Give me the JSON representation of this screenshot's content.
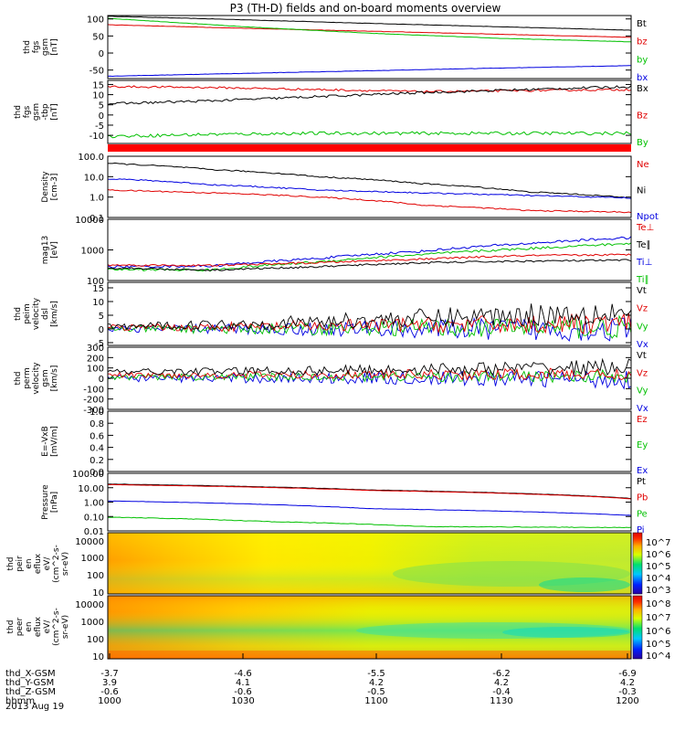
{
  "chart_data": {
    "type": "line",
    "title": "P3 (TH-D) fields and on-board moments overview",
    "date": "2013 Aug 19",
    "time_axis": {
      "tick_times": [
        "1000",
        "1030",
        "1100",
        "1130",
        "1200"
      ],
      "rows": [
        {
          "label": "thd_X-GSM",
          "values": [
            "-3.7",
            "-4.6",
            "-5.5",
            "-6.2",
            "-6.9"
          ]
        },
        {
          "label": "thd_Y-GSM",
          "values": [
            "3.9",
            "4.1",
            "4.2",
            "4.2",
            "4.2"
          ]
        },
        {
          "label": "thd_Z-GSM",
          "values": [
            "-0.6",
            "-0.6",
            "-0.5",
            "-0.4",
            "-0.3"
          ]
        },
        {
          "label": "hhmm",
          "values": [
            "1000",
            "1030",
            "1100",
            "1130",
            "1200"
          ]
        }
      ]
    },
    "panels": [
      {
        "id": "fgs",
        "ylabel": [
          "thd",
          "fgs",
          "gsm",
          "[nT]"
        ],
        "ylim": [
          -75,
          110
        ],
        "log": false,
        "ticks": [
          {
            "v": 100,
            "t": "100"
          },
          {
            "v": 50,
            "t": "50"
          },
          {
            "v": 0,
            "t": "0"
          },
          {
            "v": -50,
            "t": "-50"
          }
        ],
        "legend": [
          {
            "t": "Bt",
            "c": "#000000"
          },
          {
            "t": "bz",
            "c": "#e00000"
          },
          {
            "t": "by",
            "c": "#00c000"
          },
          {
            "t": "bx",
            "c": "#0000e0"
          }
        ],
        "series": [
          {
            "name": "Bt",
            "color": "#000000",
            "x": [
              0,
              0.25,
              0.5,
              0.75,
              1
            ],
            "y": [
              108,
              98,
              87,
              77,
              67
            ],
            "noise": 0.5
          },
          {
            "name": "bz",
            "color": "#e00000",
            "x": [
              0,
              0.25,
              0.5,
              0.75,
              1
            ],
            "y": [
              83,
              73,
              64,
              55,
              46
            ],
            "noise": 0.5
          },
          {
            "name": "by",
            "color": "#00c000",
            "x": [
              0,
              0.25,
              0.5,
              0.75,
              1
            ],
            "y": [
              102,
              78,
              58,
              43,
              33
            ],
            "noise": 0.5
          },
          {
            "name": "bx",
            "color": "#0000e0",
            "x": [
              0,
              0.25,
              0.5,
              0.75,
              1
            ],
            "y": [
              -68,
              -60,
              -52,
              -44,
              -37
            ],
            "noise": 0.5
          }
        ]
      },
      {
        "id": "fgs_tbp",
        "ylabel": [
          "thd",
          "fgs",
          "gsm",
          "-tbp",
          "[nT]"
        ],
        "ylim": [
          -14,
          17
        ],
        "log": false,
        "ticks": [
          {
            "v": 15,
            "t": "15"
          },
          {
            "v": 10,
            "t": "10"
          },
          {
            "v": 5,
            "t": "5"
          },
          {
            "v": 0,
            "t": "0"
          },
          {
            "v": -5,
            "t": "-5"
          },
          {
            "v": -10,
            "t": "-10"
          }
        ],
        "legend": [
          {
            "t": "Bx",
            "c": "#000000"
          },
          {
            "t": "Bz",
            "c": "#e00000"
          },
          {
            "t": "By",
            "c": "#00c000"
          }
        ],
        "series": [
          {
            "name": "Bz",
            "color": "#e00000",
            "x": [
              0,
              0.2,
              0.4,
              0.6,
              0.8,
              1
            ],
            "y": [
              14,
              13.5,
              12.5,
              11.5,
              12,
              12.5
            ],
            "noise": 0.5
          },
          {
            "name": "Bx",
            "color": "#000000",
            "x": [
              0,
              0.2,
              0.4,
              0.6,
              0.8,
              1
            ],
            "y": [
              5.5,
              7,
              9,
              11,
              12.5,
              14
            ],
            "noise": 0.6
          },
          {
            "name": "By",
            "color": "#00c000",
            "x": [
              0,
              0.2,
              0.4,
              0.6,
              0.8,
              1
            ],
            "y": [
              -10.5,
              -9.5,
              -9,
              -9,
              -9,
              -9
            ],
            "noise": 0.8
          }
        ]
      },
      {
        "id": "density",
        "ylabel": [
          "Density",
          "[cm-3]"
        ],
        "ylim": [
          0.1,
          100
        ],
        "log": true,
        "ticks": [
          {
            "v": 100,
            "t": "100.0"
          },
          {
            "v": 10,
            "t": "10.0"
          },
          {
            "v": 1,
            "t": "1.0"
          },
          {
            "v": 0.1,
            "t": "0.1"
          }
        ],
        "legend": [
          {
            "t": "Ne",
            "c": "#e00000"
          },
          {
            "t": "Ni",
            "c": "#000000"
          },
          {
            "t": "Npot",
            "c": "#0000e0"
          }
        ],
        "series": [
          {
            "name": "Ne",
            "color": "#e00000",
            "x": [
              0,
              0.2,
              0.4,
              0.6,
              0.8,
              1
            ],
            "y": [
              2.2,
              1.6,
              1.0,
              0.4,
              0.22,
              0.18
            ],
            "noise": 0.03
          },
          {
            "name": "Ni",
            "color": "#000000",
            "x": [
              0,
              0.2,
              0.4,
              0.6,
              0.8,
              1
            ],
            "y": [
              45,
              22,
              10,
              4.5,
              1.8,
              0.9
            ],
            "noise": 0.03
          },
          {
            "name": "Npot",
            "color": "#0000e0",
            "x": [
              0,
              0.2,
              0.4,
              0.6,
              0.8,
              1
            ],
            "y": [
              8,
              4,
              2.2,
              1.6,
              1.2,
              0.9
            ],
            "noise": 0.03
          }
        ]
      },
      {
        "id": "temperature",
        "ylabel": [
          "mag13",
          "[eV]"
        ],
        "ylim": [
          100,
          10000
        ],
        "log": true,
        "ticks": [
          {
            "v": 10000,
            "t": "10000"
          },
          {
            "v": 1000,
            "t": "1000"
          },
          {
            "v": 100,
            "t": "100"
          }
        ],
        "legend": [
          {
            "t": "Te⊥",
            "c": "#e00000"
          },
          {
            "t": "Te∥",
            "c": "#000000"
          },
          {
            "t": "Ti⊥",
            "c": "#0000e0"
          },
          {
            "t": "Ti∥",
            "c": "#00c000"
          }
        ],
        "series": [
          {
            "name": "Ti⊥",
            "color": "#0000e0",
            "x": [
              0,
              0.2,
              0.4,
              0.6,
              0.8,
              1
            ],
            "y": [
              280,
              300,
              520,
              900,
              1600,
              2500
            ],
            "noise": 0.04
          },
          {
            "name": "Ti∥",
            "color": "#00c000",
            "x": [
              0,
              0.2,
              0.4,
              0.6,
              0.8,
              1
            ],
            "y": [
              230,
              220,
              400,
              700,
              1100,
              1600
            ],
            "noise": 0.04
          },
          {
            "name": "Te⊥",
            "color": "#e00000",
            "x": [
              0,
              0.2,
              0.4,
              0.6,
              0.8,
              1
            ],
            "y": [
              320,
              310,
              380,
              500,
              650,
              700
            ],
            "noise": 0.03
          },
          {
            "name": "Te∥",
            "color": "#000000",
            "x": [
              0,
              0.2,
              0.4,
              0.6,
              0.8,
              1
            ],
            "y": [
              260,
              220,
              280,
              380,
              430,
              460
            ],
            "noise": 0.03
          }
        ]
      },
      {
        "id": "peim_velocity",
        "ylabel": [
          "thd",
          "peim",
          "velocity",
          "dsl",
          "[km/s]"
        ],
        "ylim": [
          -6,
          17
        ],
        "log": false,
        "ticks": [
          {
            "v": 15,
            "t": "15"
          },
          {
            "v": 10,
            "t": "10"
          },
          {
            "v": 5,
            "t": "5"
          },
          {
            "v": 0,
            "t": "0"
          },
          {
            "v": -5,
            "t": "-5"
          }
        ],
        "legend": [
          {
            "t": "Vt",
            "c": "#000000"
          },
          {
            "t": "Vz",
            "c": "#e00000"
          },
          {
            "t": "Vy",
            "c": "#00c000"
          },
          {
            "t": "Vx",
            "c": "#0000e0"
          }
        ],
        "series": [
          {
            "name": "Vx",
            "color": "#0000e0",
            "x": [
              0,
              0.3,
              0.6,
              1
            ],
            "y": [
              0,
              0,
              0,
              0
            ],
            "noise": 1,
            "grow": 4
          },
          {
            "name": "Vy",
            "color": "#00c000",
            "x": [
              0,
              0.3,
              0.6,
              1
            ],
            "y": [
              0,
              0,
              0.5,
              0.5
            ],
            "noise": 1,
            "grow": 3.5
          },
          {
            "name": "Vz",
            "color": "#e00000",
            "x": [
              0,
              0.3,
              0.6,
              1
            ],
            "y": [
              0.5,
              0.8,
              1.5,
              2
            ],
            "noise": 1,
            "grow": 3
          },
          {
            "name": "Vt",
            "color": "#000000",
            "x": [
              0,
              0.3,
              0.6,
              1
            ],
            "y": [
              0.8,
              2,
              4,
              6.5
            ],
            "noise": 1,
            "grow": 4
          }
        ]
      },
      {
        "id": "perm_velocity",
        "ylabel": [
          "thd",
          "perm",
          "velocity",
          "gsm",
          "[km/s]"
        ],
        "ylim": [
          -300,
          300
        ],
        "log": false,
        "ticks": [
          {
            "v": 300,
            "t": "300"
          },
          {
            "v": 200,
            "t": "200"
          },
          {
            "v": 100,
            "t": "100"
          },
          {
            "v": 0,
            "t": "0"
          },
          {
            "v": -100,
            "t": "-100"
          },
          {
            "v": -200,
            "t": "-200"
          },
          {
            "v": -300,
            "t": "-300"
          }
        ],
        "legend": [
          {
            "t": "Vt",
            "c": "#000000"
          },
          {
            "t": "Vz",
            "c": "#e00000"
          },
          {
            "t": "Vy",
            "c": "#00c000"
          },
          {
            "t": "Vx",
            "c": "#0000e0"
          }
        ],
        "series": [
          {
            "name": "Vx",
            "color": "#0000e0",
            "x": [
              0,
              0.5,
              1
            ],
            "y": [
              0,
              0,
              -10
            ],
            "noise": 30,
            "grow": 60
          },
          {
            "name": "Vy",
            "color": "#00c000",
            "x": [
              0,
              0.5,
              1
            ],
            "y": [
              10,
              15,
              20
            ],
            "noise": 25,
            "grow": 40
          },
          {
            "name": "Vz",
            "color": "#e00000",
            "x": [
              0,
              0.5,
              1
            ],
            "y": [
              30,
              35,
              40
            ],
            "noise": 25,
            "grow": 40
          },
          {
            "name": "Vt",
            "color": "#000000",
            "x": [
              0,
              0.5,
              1
            ],
            "y": [
              60,
              80,
              110
            ],
            "noise": 25,
            "grow": 55
          }
        ]
      },
      {
        "id": "efield",
        "ylabel": [
          "E=-VxB",
          "[mV/m]"
        ],
        "ylim": [
          0,
          1
        ],
        "log": false,
        "ticks": [
          {
            "v": 1,
            "t": "1.0"
          },
          {
            "v": 0.8,
            "t": "0.8"
          },
          {
            "v": 0.6,
            "t": "0.6"
          },
          {
            "v": 0.4,
            "t": "0.4"
          },
          {
            "v": 0.2,
            "t": "0.2"
          },
          {
            "v": 0,
            "t": "0.0"
          }
        ],
        "legend": [
          {
            "t": "Ez",
            "c": "#e00000"
          },
          {
            "t": "Ey",
            "c": "#00c000"
          },
          {
            "t": "Ex",
            "c": "#0000e0"
          }
        ],
        "series": []
      },
      {
        "id": "pressure",
        "ylabel": [
          "Pressure",
          "[nPa]"
        ],
        "ylim": [
          0.01,
          100
        ],
        "log": true,
        "ticks": [
          {
            "v": 100,
            "t": "100.00"
          },
          {
            "v": 10,
            "t": "10.00"
          },
          {
            "v": 1,
            "t": "1.00"
          },
          {
            "v": 0.1,
            "t": "0.10"
          },
          {
            "v": 0.01,
            "t": "0.01"
          }
        ],
        "legend": [
          {
            "t": "Pt",
            "c": "#000000"
          },
          {
            "t": "Pb",
            "c": "#e00000"
          },
          {
            "t": "Pe",
            "c": "#00c000"
          },
          {
            "t": "Pi",
            "c": "#0000e0"
          }
        ],
        "series": [
          {
            "name": "Pt",
            "color": "#000000",
            "x": [
              0,
              0.5,
              1
            ],
            "y": [
              18,
              7,
              1.8
            ],
            "noise": 0.01
          },
          {
            "name": "Pb",
            "color": "#e00000",
            "x": [
              0,
              0.5,
              1
            ],
            "y": [
              16.5,
              6.5,
              1.7
            ],
            "noise": 0.01
          },
          {
            "name": "Pi",
            "color": "#0000e0",
            "x": [
              0,
              0.5,
              1
            ],
            "y": [
              1.2,
              0.35,
              0.12
            ],
            "noise": 0.01
          },
          {
            "name": "Pe",
            "color": "#00c000",
            "x": [
              0,
              0.3,
              0.6,
              1
            ],
            "y": [
              0.09,
              0.045,
              0.02,
              0.017
            ],
            "noise": 0.02
          }
        ]
      }
    ],
    "spectrograms": [
      {
        "id": "peir_spectrogram",
        "ylabel": [
          "thd",
          "peir",
          "en",
          "eflux",
          "eV/",
          "(cm^2-s-",
          "sr-eV)"
        ],
        "yticks": [
          "10000",
          "1000",
          "100",
          "10"
        ],
        "colorbar": {
          "labels": [
            "10^7",
            "10^6",
            "10^5",
            "10^4",
            "10^3"
          ]
        }
      },
      {
        "id": "peer_spectrogram",
        "ylabel": [
          "thd",
          "peer",
          "en",
          "eflux",
          "eV/",
          "(cm^2-s-",
          "sr-eV)"
        ],
        "yticks": [
          "10000",
          "1000",
          "100",
          "10"
        ],
        "colorbar": {
          "labels": [
            "10^8",
            "10^7",
            "10^6",
            "10^5",
            "10^4"
          ]
        }
      }
    ]
  }
}
